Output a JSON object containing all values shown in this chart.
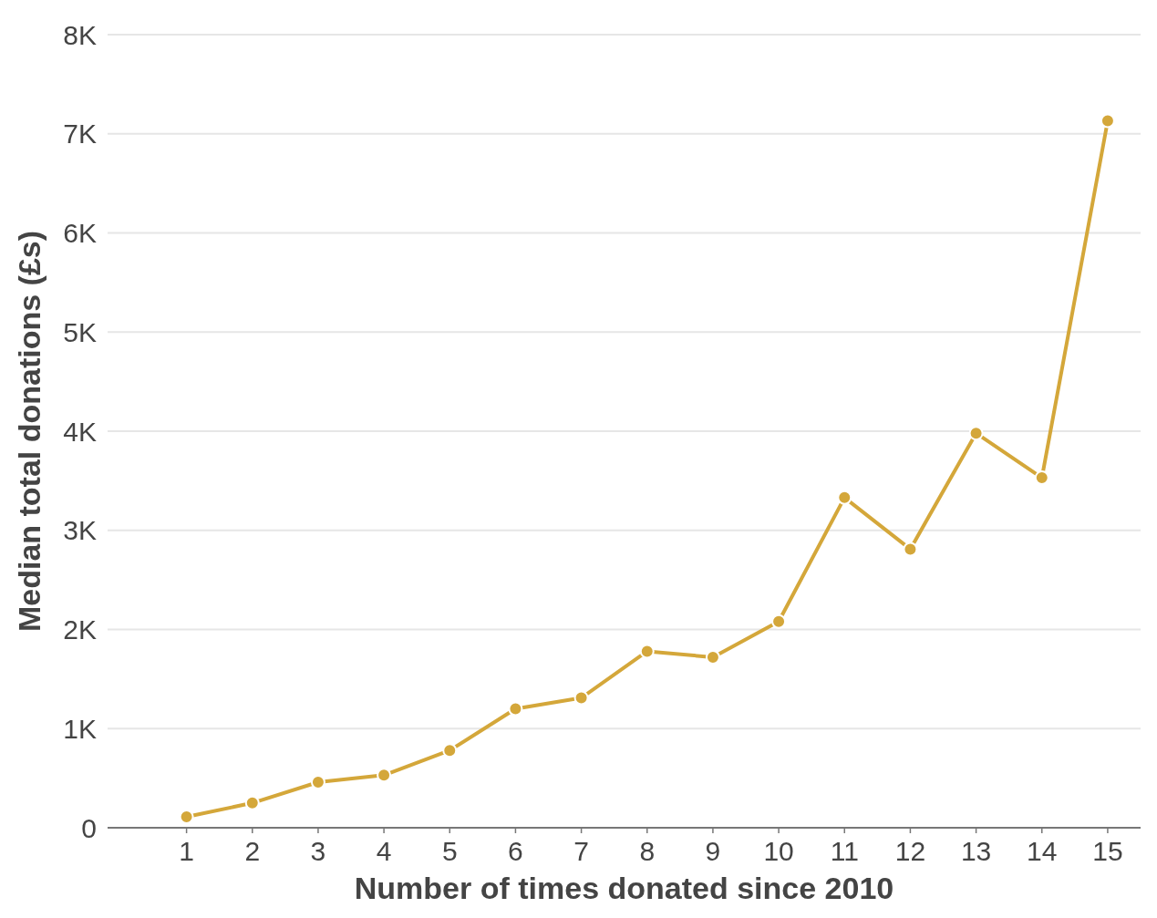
{
  "chart_data": {
    "type": "line",
    "xlabel": "Number of times donated since 2010",
    "ylabel": "Median total donations (£s)",
    "x": [
      1,
      2,
      3,
      4,
      5,
      6,
      7,
      8,
      9,
      10,
      11,
      12,
      13,
      14,
      15
    ],
    "series": [
      {
        "color": "#d4a73a",
        "values": [
          110,
          250,
          460,
          530,
          780,
          1200,
          1310,
          1780,
          1720,
          2080,
          3330,
          2810,
          3980,
          3530,
          7130
        ]
      }
    ],
    "xlim": [
      -0.2,
      15.5
    ],
    "xticks": [
      1,
      2,
      3,
      4,
      5,
      6,
      7,
      8,
      9,
      10,
      11,
      12,
      13,
      14,
      15
    ],
    "ylim": [
      0,
      8000
    ],
    "yticks": [
      {
        "value": 0,
        "label": "0"
      },
      {
        "value": 1000,
        "label": "1K"
      },
      {
        "value": 2000,
        "label": "2K"
      },
      {
        "value": 3000,
        "label": "3K"
      },
      {
        "value": 4000,
        "label": "4K"
      },
      {
        "value": 5000,
        "label": "5K"
      },
      {
        "value": 6000,
        "label": "6K"
      },
      {
        "value": 7000,
        "label": "7K"
      },
      {
        "value": 8000,
        "label": "8K"
      }
    ],
    "grid": "y",
    "marker": "circle",
    "line_style": "solid"
  }
}
